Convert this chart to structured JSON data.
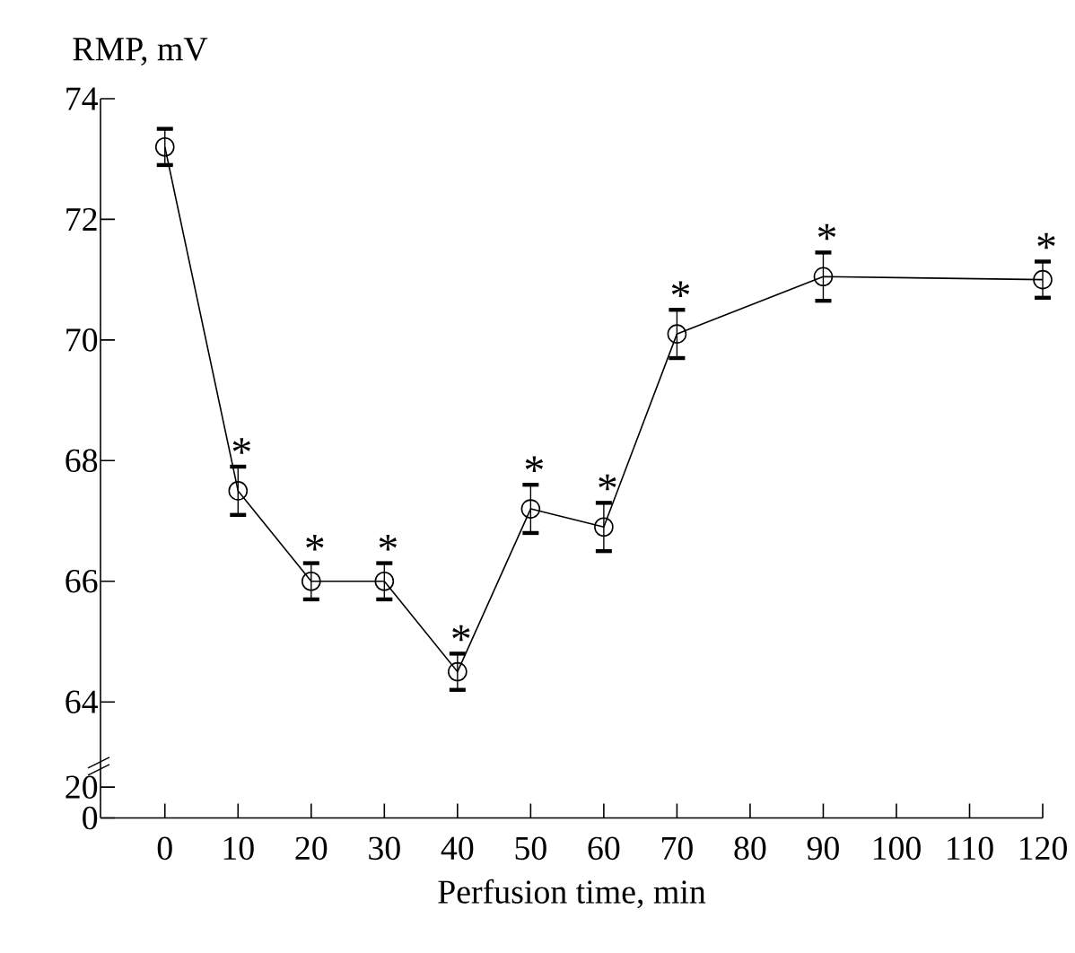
{
  "chart_data": [
    {
      "type": "line",
      "ylabel": "RMP, mV",
      "x": [
        0,
        10,
        20,
        30,
        40,
        50,
        60,
        70,
        90,
        120
      ],
      "series": [
        {
          "color": "#000000",
          "values": [
            73.2,
            67.5,
            66.0,
            66.0,
            64.5,
            67.2,
            66.9,
            70.1,
            71.05,
            71.0
          ],
          "errors": [
            0.3,
            0.4,
            0.3,
            0.3,
            0.3,
            0.4,
            0.4,
            0.4,
            0.4,
            0.3
          ]
        }
      ],
      "marker": "circle",
      "line_style": "solid",
      "xlim": [
        -8.8,
        120
      ],
      "xticks": [
        0,
        10,
        20,
        30,
        40,
        50,
        60,
        70,
        80,
        90,
        100,
        110,
        120
      ],
      "ylim": [
        63.2,
        74
      ],
      "yticks": [
        64,
        66,
        68,
        70,
        72,
        74
      ],
      "tick_labels": "y",
      "annotations": [
        {
          "text": "*",
          "x": 10,
          "y": 67.5
        },
        {
          "text": "*",
          "x": 20,
          "y": 66.0
        },
        {
          "text": "*",
          "x": 30,
          "y": 66.0
        },
        {
          "text": "*",
          "x": 40,
          "y": 64.5
        },
        {
          "text": "*",
          "x": 50,
          "y": 67.2
        },
        {
          "text": "*",
          "x": 60,
          "y": 66.9
        },
        {
          "text": "*",
          "x": 70,
          "y": 70.1
        },
        {
          "text": "*",
          "x": 90,
          "y": 71.05
        },
        {
          "text": "*",
          "x": 120,
          "y": 71.0
        }
      ]
    },
    {
      "type": "line",
      "xlabel": "Perfusion time, min",
      "xlim": [
        -8.8,
        120
      ],
      "xticks": [
        0,
        10,
        20,
        30,
        40,
        50,
        60,
        70,
        80,
        90,
        100,
        110,
        120
      ],
      "ylim": [
        0,
        30
      ],
      "yticks": [
        0,
        20
      ]
    }
  ]
}
